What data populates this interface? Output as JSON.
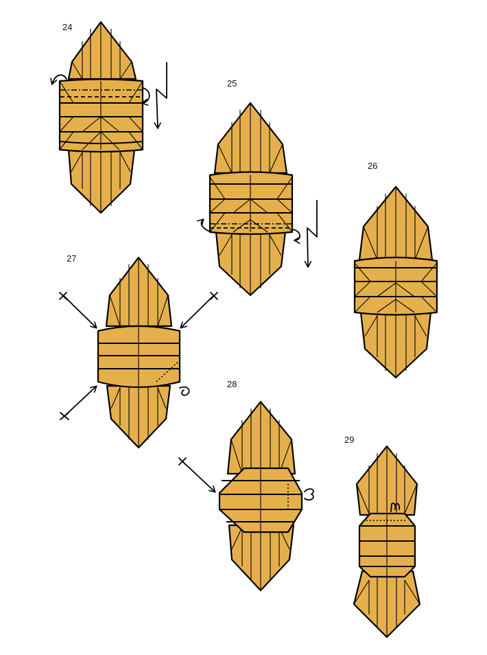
{
  "diagram": {
    "colors": {
      "paper": "#E5B04C",
      "line": "#000000",
      "background": "#ffffff"
    },
    "steps": [
      {
        "number": "24"
      },
      {
        "number": "25"
      },
      {
        "number": "26"
      },
      {
        "number": "27"
      },
      {
        "number": "28"
      },
      {
        "number": "29"
      }
    ]
  }
}
